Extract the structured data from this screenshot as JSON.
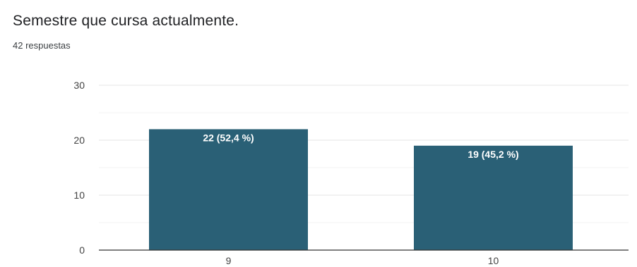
{
  "header": {
    "title": "Semestre que cursa actualmente.",
    "responses": "42 respuestas"
  },
  "chart_data": {
    "type": "bar",
    "categories": [
      "9",
      "10"
    ],
    "values": [
      22,
      19
    ],
    "data_labels": [
      "22 (52,4 %)",
      "19 (45,2 %)"
    ],
    "ylim": [
      0,
      30
    ],
    "yticks": [
      0,
      10,
      20,
      30
    ],
    "grid": true,
    "bar_color": "#2a6076"
  }
}
